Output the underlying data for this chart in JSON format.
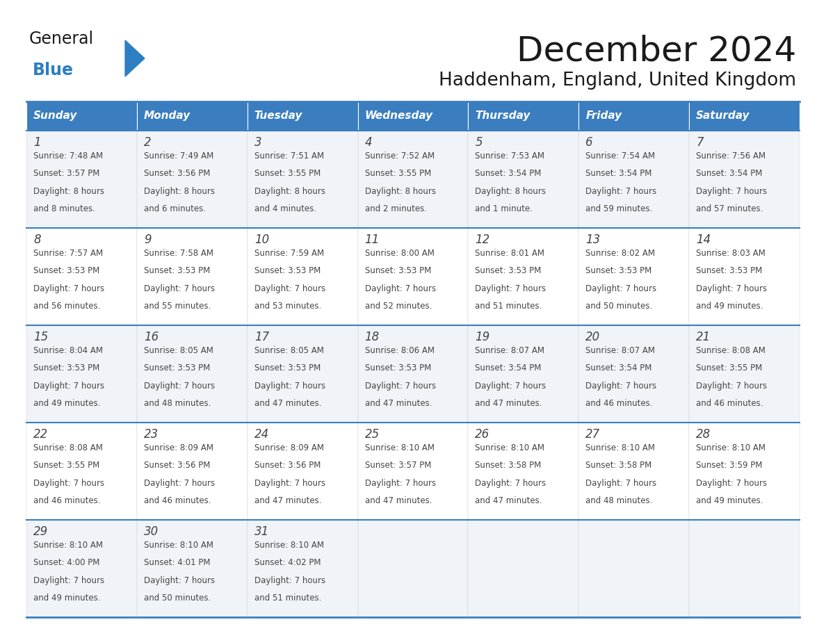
{
  "title": "December 2024",
  "subtitle": "Haddenham, England, United Kingdom",
  "days_of_week": [
    "Sunday",
    "Monday",
    "Tuesday",
    "Wednesday",
    "Thursday",
    "Friday",
    "Saturday"
  ],
  "header_bg": "#3a7ebf",
  "header_text_color": "#ffffff",
  "cell_bg_odd": "#f0f4f8",
  "cell_bg_even": "#ffffff",
  "cell_border_color": "#3a7ebf",
  "text_color": "#444444",
  "day_num_color": "#444444",
  "logo_general_color": "#1a1a1a",
  "logo_blue_color": "#2e7fc1",
  "logo_triangle_color": "#2e7fc1",
  "calendar_data": [
    [
      {
        "day": 1,
        "sunrise": "7:48 AM",
        "sunset": "3:57 PM",
        "daylight_l1": "8 hours",
        "daylight_l2": "and 8 minutes."
      },
      {
        "day": 2,
        "sunrise": "7:49 AM",
        "sunset": "3:56 PM",
        "daylight_l1": "8 hours",
        "daylight_l2": "and 6 minutes."
      },
      {
        "day": 3,
        "sunrise": "7:51 AM",
        "sunset": "3:55 PM",
        "daylight_l1": "8 hours",
        "daylight_l2": "and 4 minutes."
      },
      {
        "day": 4,
        "sunrise": "7:52 AM",
        "sunset": "3:55 PM",
        "daylight_l1": "8 hours",
        "daylight_l2": "and 2 minutes."
      },
      {
        "day": 5,
        "sunrise": "7:53 AM",
        "sunset": "3:54 PM",
        "daylight_l1": "8 hours",
        "daylight_l2": "and 1 minute."
      },
      {
        "day": 6,
        "sunrise": "7:54 AM",
        "sunset": "3:54 PM",
        "daylight_l1": "7 hours",
        "daylight_l2": "and 59 minutes."
      },
      {
        "day": 7,
        "sunrise": "7:56 AM",
        "sunset": "3:54 PM",
        "daylight_l1": "7 hours",
        "daylight_l2": "and 57 minutes."
      }
    ],
    [
      {
        "day": 8,
        "sunrise": "7:57 AM",
        "sunset": "3:53 PM",
        "daylight_l1": "7 hours",
        "daylight_l2": "and 56 minutes."
      },
      {
        "day": 9,
        "sunrise": "7:58 AM",
        "sunset": "3:53 PM",
        "daylight_l1": "7 hours",
        "daylight_l2": "and 55 minutes."
      },
      {
        "day": 10,
        "sunrise": "7:59 AM",
        "sunset": "3:53 PM",
        "daylight_l1": "7 hours",
        "daylight_l2": "and 53 minutes."
      },
      {
        "day": 11,
        "sunrise": "8:00 AM",
        "sunset": "3:53 PM",
        "daylight_l1": "7 hours",
        "daylight_l2": "and 52 minutes."
      },
      {
        "day": 12,
        "sunrise": "8:01 AM",
        "sunset": "3:53 PM",
        "daylight_l1": "7 hours",
        "daylight_l2": "and 51 minutes."
      },
      {
        "day": 13,
        "sunrise": "8:02 AM",
        "sunset": "3:53 PM",
        "daylight_l1": "7 hours",
        "daylight_l2": "and 50 minutes."
      },
      {
        "day": 14,
        "sunrise": "8:03 AM",
        "sunset": "3:53 PM",
        "daylight_l1": "7 hours",
        "daylight_l2": "and 49 minutes."
      }
    ],
    [
      {
        "day": 15,
        "sunrise": "8:04 AM",
        "sunset": "3:53 PM",
        "daylight_l1": "7 hours",
        "daylight_l2": "and 49 minutes."
      },
      {
        "day": 16,
        "sunrise": "8:05 AM",
        "sunset": "3:53 PM",
        "daylight_l1": "7 hours",
        "daylight_l2": "and 48 minutes."
      },
      {
        "day": 17,
        "sunrise": "8:05 AM",
        "sunset": "3:53 PM",
        "daylight_l1": "7 hours",
        "daylight_l2": "and 47 minutes."
      },
      {
        "day": 18,
        "sunrise": "8:06 AM",
        "sunset": "3:53 PM",
        "daylight_l1": "7 hours",
        "daylight_l2": "and 47 minutes."
      },
      {
        "day": 19,
        "sunrise": "8:07 AM",
        "sunset": "3:54 PM",
        "daylight_l1": "7 hours",
        "daylight_l2": "and 47 minutes."
      },
      {
        "day": 20,
        "sunrise": "8:07 AM",
        "sunset": "3:54 PM",
        "daylight_l1": "7 hours",
        "daylight_l2": "and 46 minutes."
      },
      {
        "day": 21,
        "sunrise": "8:08 AM",
        "sunset": "3:55 PM",
        "daylight_l1": "7 hours",
        "daylight_l2": "and 46 minutes."
      }
    ],
    [
      {
        "day": 22,
        "sunrise": "8:08 AM",
        "sunset": "3:55 PM",
        "daylight_l1": "7 hours",
        "daylight_l2": "and 46 minutes."
      },
      {
        "day": 23,
        "sunrise": "8:09 AM",
        "sunset": "3:56 PM",
        "daylight_l1": "7 hours",
        "daylight_l2": "and 46 minutes."
      },
      {
        "day": 24,
        "sunrise": "8:09 AM",
        "sunset": "3:56 PM",
        "daylight_l1": "7 hours",
        "daylight_l2": "and 47 minutes."
      },
      {
        "day": 25,
        "sunrise": "8:10 AM",
        "sunset": "3:57 PM",
        "daylight_l1": "7 hours",
        "daylight_l2": "and 47 minutes."
      },
      {
        "day": 26,
        "sunrise": "8:10 AM",
        "sunset": "3:58 PM",
        "daylight_l1": "7 hours",
        "daylight_l2": "and 47 minutes."
      },
      {
        "day": 27,
        "sunrise": "8:10 AM",
        "sunset": "3:58 PM",
        "daylight_l1": "7 hours",
        "daylight_l2": "and 48 minutes."
      },
      {
        "day": 28,
        "sunrise": "8:10 AM",
        "sunset": "3:59 PM",
        "daylight_l1": "7 hours",
        "daylight_l2": "and 49 minutes."
      }
    ],
    [
      {
        "day": 29,
        "sunrise": "8:10 AM",
        "sunset": "4:00 PM",
        "daylight_l1": "7 hours",
        "daylight_l2": "and 49 minutes."
      },
      {
        "day": 30,
        "sunrise": "8:10 AM",
        "sunset": "4:01 PM",
        "daylight_l1": "7 hours",
        "daylight_l2": "and 50 minutes."
      },
      {
        "day": 31,
        "sunrise": "8:10 AM",
        "sunset": "4:02 PM",
        "daylight_l1": "7 hours",
        "daylight_l2": "and 51 minutes."
      },
      null,
      null,
      null,
      null
    ]
  ]
}
